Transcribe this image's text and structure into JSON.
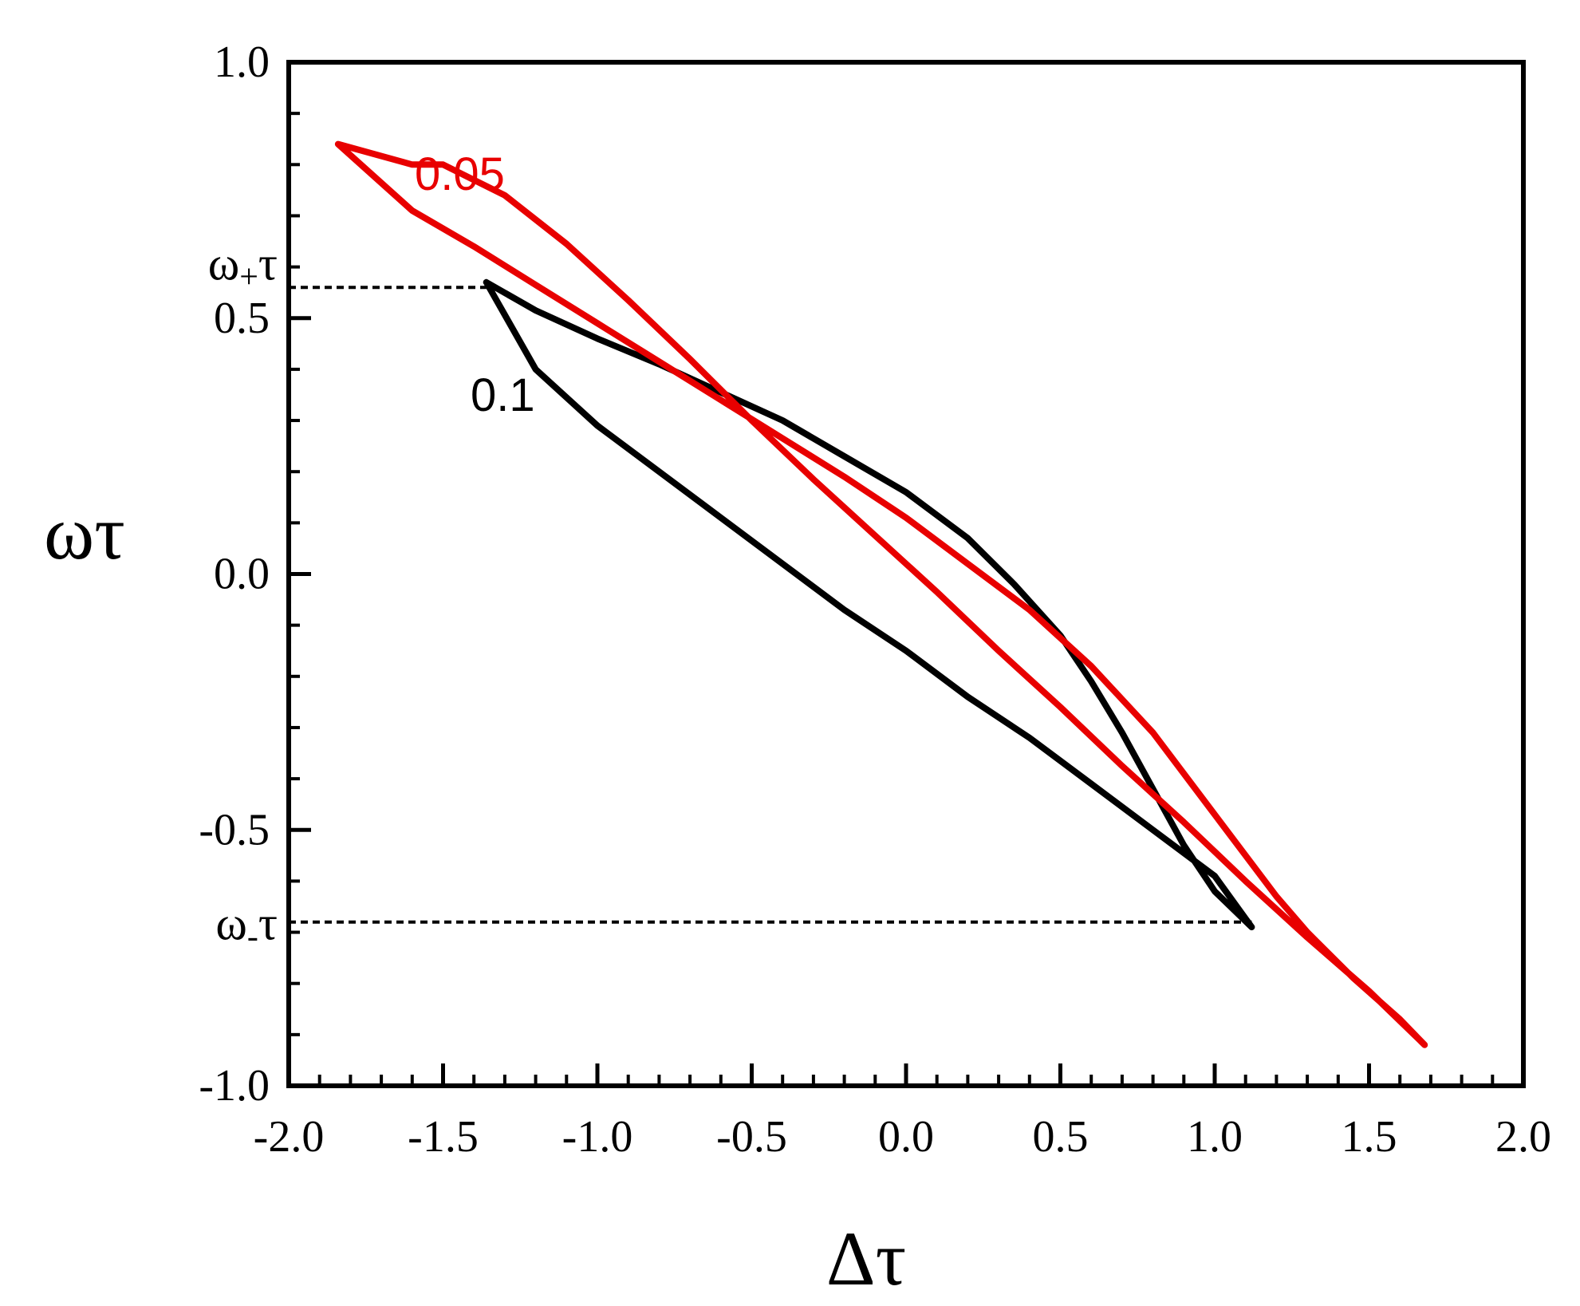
{
  "chart_data": {
    "type": "line",
    "title": "",
    "xlabel": "Δτ",
    "ylabel": "ωτ",
    "xlim": [
      -2.0,
      2.0
    ],
    "ylim": [
      -1.0,
      1.0
    ],
    "x_ticks": [
      "-2.0",
      "-1.5",
      "-1.0",
      "-0.5",
      "0.0",
      "0.5",
      "1.0",
      "1.5",
      "2.0"
    ],
    "y_ticks": [
      "-1.0",
      "-0.5",
      "0.0",
      "0.5",
      "1.0"
    ],
    "x_tick_values": [
      -2.0,
      -1.5,
      -1.0,
      -0.5,
      0.0,
      0.5,
      1.0,
      1.5,
      2.0
    ],
    "y_tick_values": [
      -1.0,
      -0.5,
      0.0,
      0.5,
      1.0
    ],
    "grid": false,
    "series": [
      {
        "name": "0.1",
        "color": "#000000",
        "points": [
          [
            -1.36,
            0.57
          ],
          [
            -1.2,
            0.515
          ],
          [
            -1.0,
            0.46
          ],
          [
            -0.8,
            0.41
          ],
          [
            -0.6,
            0.355
          ],
          [
            -0.4,
            0.3
          ],
          [
            -0.2,
            0.23
          ],
          [
            0.0,
            0.16
          ],
          [
            0.2,
            0.07
          ],
          [
            0.35,
            -0.02
          ],
          [
            0.5,
            -0.12
          ],
          [
            0.6,
            -0.21
          ],
          [
            0.7,
            -0.31
          ],
          [
            0.8,
            -0.42
          ],
          [
            0.9,
            -0.53
          ],
          [
            1.0,
            -0.62
          ],
          [
            1.12,
            -0.69
          ],
          [
            1.0,
            -0.59
          ],
          [
            0.8,
            -0.5
          ],
          [
            0.6,
            -0.41
          ],
          [
            0.4,
            -0.32
          ],
          [
            0.2,
            -0.24
          ],
          [
            0.0,
            -0.15
          ],
          [
            -0.2,
            -0.07
          ],
          [
            -0.4,
            0.02
          ],
          [
            -0.6,
            0.11
          ],
          [
            -0.8,
            0.2
          ],
          [
            -1.0,
            0.29
          ],
          [
            -1.2,
            0.4
          ],
          [
            -1.36,
            0.57
          ]
        ]
      },
      {
        "name": "0.05",
        "color": "#e80000",
        "points": [
          [
            -1.84,
            0.84
          ],
          [
            -1.6,
            0.71
          ],
          [
            -1.4,
            0.64
          ],
          [
            -1.2,
            0.565
          ],
          [
            -1.0,
            0.49
          ],
          [
            -0.8,
            0.415
          ],
          [
            -0.6,
            0.34
          ],
          [
            -0.4,
            0.265
          ],
          [
            -0.2,
            0.19
          ],
          [
            0.0,
            0.11
          ],
          [
            0.2,
            0.02
          ],
          [
            0.4,
            -0.07
          ],
          [
            0.6,
            -0.18
          ],
          [
            0.8,
            -0.31
          ],
          [
            1.0,
            -0.47
          ],
          [
            1.2,
            -0.63
          ],
          [
            1.3,
            -0.7
          ],
          [
            1.45,
            -0.79
          ],
          [
            1.6,
            -0.87
          ],
          [
            1.68,
            -0.92
          ],
          [
            1.5,
            -0.815
          ],
          [
            1.3,
            -0.71
          ],
          [
            1.1,
            -0.6
          ],
          [
            0.9,
            -0.485
          ],
          [
            0.7,
            -0.375
          ],
          [
            0.5,
            -0.26
          ],
          [
            0.3,
            -0.15
          ],
          [
            0.1,
            -0.035
          ],
          [
            -0.1,
            0.075
          ],
          [
            -0.3,
            0.185
          ],
          [
            -0.5,
            0.3
          ],
          [
            -0.7,
            0.42
          ],
          [
            -0.9,
            0.535
          ],
          [
            -1.1,
            0.645
          ],
          [
            -1.3,
            0.74
          ],
          [
            -1.5,
            0.8
          ],
          [
            -1.6,
            0.8
          ],
          [
            -1.84,
            0.84
          ]
        ]
      }
    ],
    "annotations": [
      {
        "text": "0.05",
        "color": "#e80000"
      },
      {
        "text": "0.1",
        "color": "#000000"
      }
    ],
    "reference_lines": [
      {
        "label_main": "ω",
        "label_sub": "+",
        "label_tail": "τ",
        "y": 0.56,
        "x_end": -1.36
      },
      {
        "label_main": "ω",
        "label_sub": "-",
        "label_tail": "τ",
        "y": -0.68,
        "x_end": 1.12
      }
    ]
  }
}
